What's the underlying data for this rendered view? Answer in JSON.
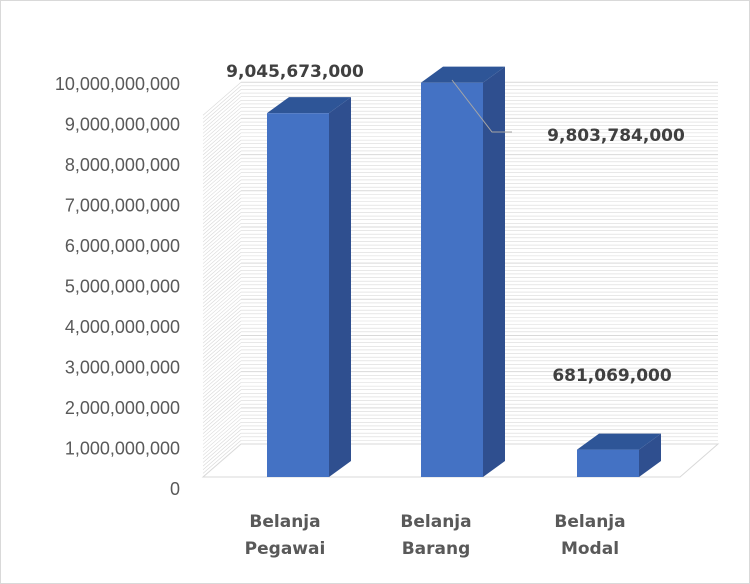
{
  "chart_data": {
    "type": "bar",
    "style": "3d-column",
    "categories": [
      [
        "Belanja",
        "Pegawai"
      ],
      [
        "Belanja",
        "Barang"
      ],
      [
        "Belanja",
        "Modal"
      ]
    ],
    "values": [
      9045673000,
      9803784000,
      681069000
    ],
    "data_labels": [
      "9,045,673,000",
      "9,803,784,000",
      "681,069,000"
    ],
    "y_ticks": [
      "0",
      "1,000,000,000",
      "2,000,000,000",
      "3,000,000,000",
      "4,000,000,000",
      "5,000,000,000",
      "6,000,000,000",
      "7,000,000,000",
      "8,000,000,000",
      "9,000,000,000",
      "10,000,000,000"
    ],
    "ylim": [
      0,
      10000000000
    ],
    "title": "",
    "xlabel": "",
    "ylabel": "",
    "grid": true,
    "legend": "none",
    "colors": {
      "bar_front": "#4472c4",
      "bar_side": "#2f4f8f",
      "bar_top": "#2e5597",
      "grid": "#d9d9d9",
      "tick_text": "#595959",
      "label_text": "#404040"
    }
  }
}
